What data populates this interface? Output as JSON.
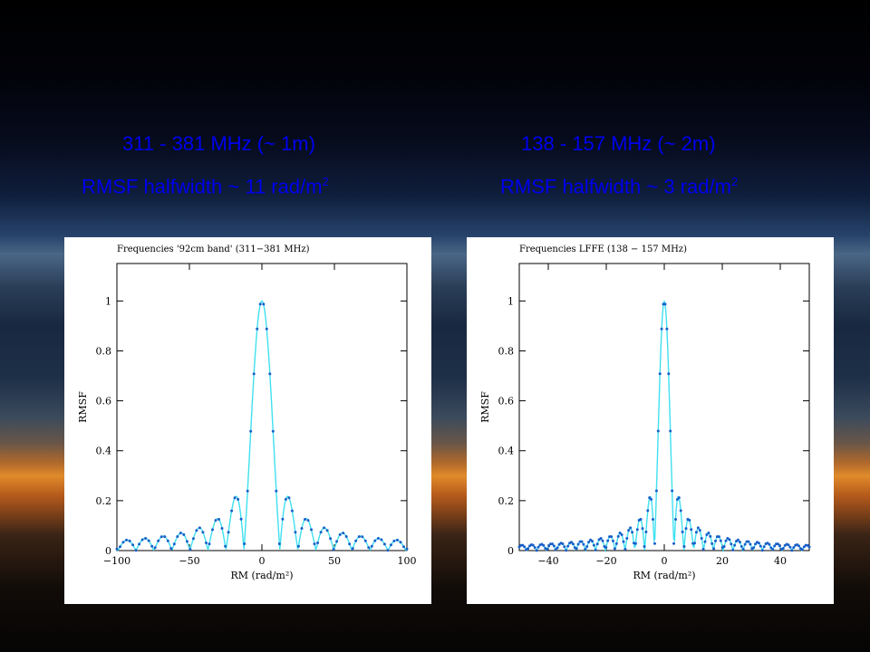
{
  "headings": {
    "left_freq": "311 - 381 MHz   (~ 1m)",
    "left_rmsf": "RMSF halfwidth  ~ 11 rad/m",
    "left_rmsf_sup": "2",
    "right_freq": "138 - 157 MHz (~ 2m)",
    "right_rmsf": "RMSF halfwidth  ~ 3 rad/m",
    "right_rmsf_sup": "2"
  },
  "colors": {
    "heading": "#0000ee",
    "line": "#3fe0f0",
    "points": "#1a5fc8"
  },
  "chart_data": [
    {
      "type": "line",
      "title": "Frequencies '92cm band' (311−381 MHz)",
      "xlabel": "RM (rad/m²)",
      "ylabel": "RMSF",
      "xlim": [
        -100,
        100
      ],
      "ylim": [
        0,
        1.15
      ],
      "xticks": [
        -100,
        -50,
        0,
        50,
        100
      ],
      "xtick_labels": [
        "−100",
        "−50",
        "0",
        "50",
        "100"
      ],
      "yticks": [
        0,
        0.2,
        0.4,
        0.6,
        0.8,
        1
      ],
      "ytick_labels": [
        "0",
        "0.2",
        "0.4",
        "0.6",
        "0.8",
        "1"
      ],
      "grid": false,
      "halfwidth": 11,
      "series": [
        {
          "x": [
            -100,
            -95,
            -90,
            -85,
            -80,
            -75,
            -70,
            -65,
            -60,
            -55,
            -50,
            -45,
            -40,
            -35,
            -30,
            -25,
            -20,
            -17,
            -15,
            -12,
            -10,
            -8,
            -6,
            -4,
            -2,
            0,
            2,
            4,
            6,
            8,
            10,
            12,
            15,
            17,
            20,
            25,
            30,
            35,
            40,
            45,
            50,
            55,
            60,
            65,
            70,
            75,
            80,
            85,
            90,
            95,
            100
          ],
          "y": [
            0.03,
            0.01,
            0.03,
            0.01,
            0.03,
            0.01,
            0.04,
            0.01,
            0.04,
            0.01,
            0.05,
            0.01,
            0.06,
            0.01,
            0.08,
            0.02,
            0.12,
            0.05,
            0.22,
            0.1,
            0.3,
            0.5,
            0.75,
            0.92,
            1.0,
            1.0,
            1.0,
            0.92,
            0.75,
            0.5,
            0.3,
            0.1,
            0.22,
            0.05,
            0.12,
            0.02,
            0.08,
            0.01,
            0.06,
            0.01,
            0.05,
            0.01,
            0.04,
            0.01,
            0.04,
            0.01,
            0.03,
            0.01,
            0.03,
            0.01,
            0.03
          ]
        }
      ]
    },
    {
      "type": "line",
      "title": "Frequencies LFFE (138 − 157 MHz)",
      "xlabel": "RM (rad/m²)",
      "ylabel": "RMSF",
      "xlim": [
        -50,
        50
      ],
      "ylim": [
        0,
        1.15
      ],
      "xticks": [
        -40,
        -20,
        0,
        20,
        40
      ],
      "xtick_labels": [
        "−40",
        "−20",
        "0",
        "20",
        "40"
      ],
      "yticks": [
        0,
        0.2,
        0.4,
        0.6,
        0.8,
        1
      ],
      "ytick_labels": [
        "0",
        "0.2",
        "0.4",
        "0.6",
        "0.8",
        "1"
      ],
      "grid": false,
      "halfwidth": 3,
      "series": [
        {
          "x": [
            -50,
            -46,
            -42,
            -38,
            -34,
            -30,
            -26,
            -22,
            -18,
            -14,
            -10,
            -8,
            -6,
            -5,
            -4,
            -3,
            -2,
            -1,
            0,
            1,
            2,
            3,
            4,
            5,
            6,
            8,
            10,
            14,
            18,
            22,
            26,
            30,
            34,
            38,
            42,
            46,
            50
          ],
          "y": [
            0.01,
            0.02,
            0.01,
            0.02,
            0.01,
            0.03,
            0.02,
            0.04,
            0.03,
            0.06,
            0.1,
            0.13,
            0.21,
            0.03,
            0.18,
            0.05,
            0.42,
            0.82,
            1.0,
            0.82,
            0.42,
            0.05,
            0.18,
            0.03,
            0.21,
            0.13,
            0.1,
            0.06,
            0.03,
            0.04,
            0.02,
            0.03,
            0.01,
            0.02,
            0.01,
            0.02,
            0.01
          ]
        }
      ]
    }
  ]
}
